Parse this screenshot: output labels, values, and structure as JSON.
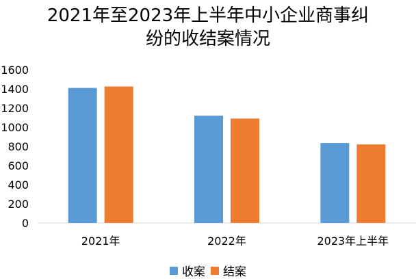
{
  "chart_data": {
    "type": "bar",
    "title_lines": [
      "2021年至2023年上半年中小企业商事纠",
      "纷的收结案情况"
    ],
    "categories": [
      "2021年",
      "2022年",
      "2023年上半年"
    ],
    "series": [
      {
        "name": "收案",
        "values": [
          1410,
          1120,
          835
        ],
        "color": "#5b9bd5"
      },
      {
        "name": "结案",
        "values": [
          1425,
          1090,
          820
        ],
        "color": "#ed7d31"
      }
    ],
    "ylim": [
      0,
      1600
    ],
    "yticks": [
      "0",
      "200",
      "400",
      "600",
      "800",
      "1000",
      "1200",
      "1400",
      "1600"
    ],
    "grid": false,
    "legend_position": "bottom"
  }
}
